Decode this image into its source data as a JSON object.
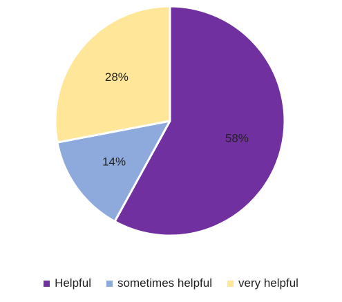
{
  "chart_data": {
    "type": "pie",
    "start_angle_deg": 0,
    "direction": "clockwise",
    "legend_position": "bottom",
    "slices": [
      {
        "name": "Helpful",
        "value": 58,
        "label": "58%",
        "color": "#7030A0"
      },
      {
        "name": "sometimes helpful",
        "value": 14,
        "label": "14%",
        "color": "#8EA9DB"
      },
      {
        "name": "very helpful",
        "value": 28,
        "label": "28%",
        "color": "#FFE699"
      }
    ]
  }
}
